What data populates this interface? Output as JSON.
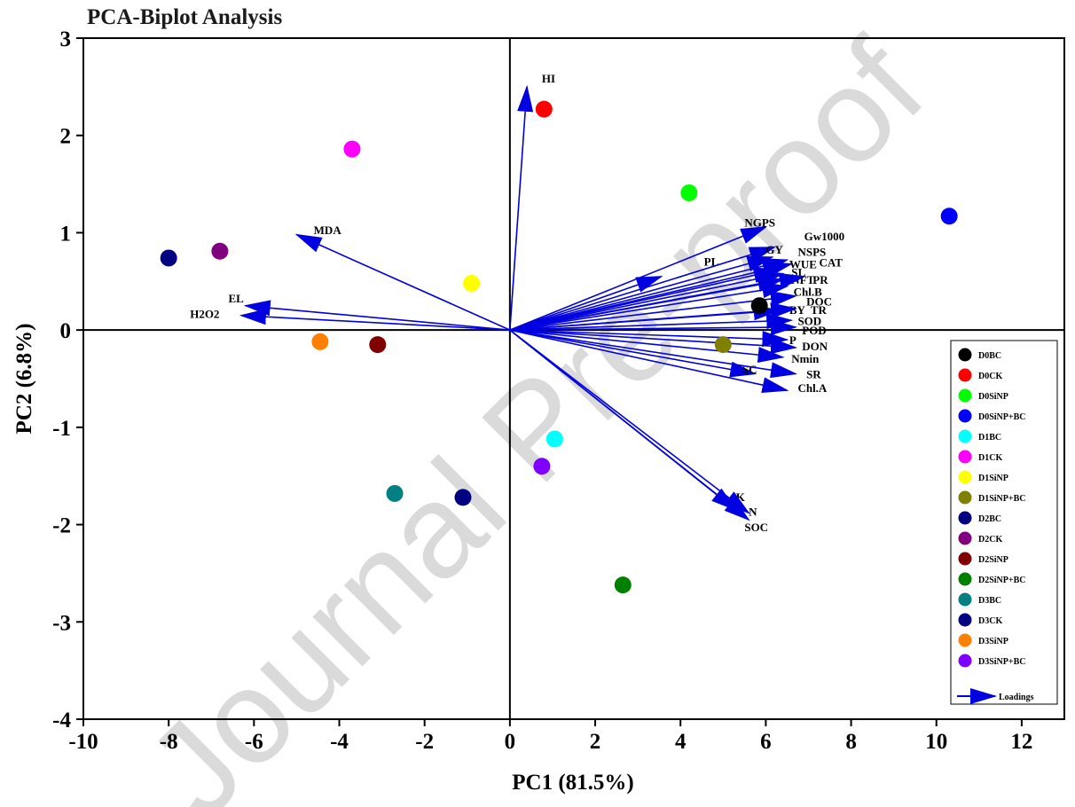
{
  "chart_data": {
    "type": "scatter",
    "title": "PCA-Biplot Analysis",
    "xlabel": "PC1 (81.5%)",
    "ylabel": "PC2 (6.8%)",
    "xlim": [
      -10,
      13
    ],
    "ylim": [
      -4,
      3
    ],
    "xticks": [
      "-10",
      "-8",
      "-6",
      "-4",
      "-2",
      "0",
      "2",
      "4",
      "6",
      "8",
      "10",
      "12"
    ],
    "yticks": [
      "-4",
      "-3",
      "-2",
      "-1",
      "0",
      "1",
      "2",
      "3"
    ],
    "grid": false,
    "legend_position": "right",
    "scores": [
      {
        "name": "D0BC",
        "x": 5.85,
        "y": 0.25,
        "color": "#000000"
      },
      {
        "name": "D0CK",
        "x": 0.8,
        "y": 2.27,
        "color": "#ff0000"
      },
      {
        "name": "D0SiNP",
        "x": 4.2,
        "y": 1.41,
        "color": "#00ff00"
      },
      {
        "name": "D0SiNP+BC",
        "x": 10.3,
        "y": 1.17,
        "color": "#0000ff"
      },
      {
        "name": "D1BC",
        "x": 1.05,
        "y": -1.12,
        "color": "#00ffff"
      },
      {
        "name": "D1CK",
        "x": -3.7,
        "y": 1.86,
        "color": "#ff00ff"
      },
      {
        "name": "D1SiNP",
        "x": -0.9,
        "y": 0.48,
        "color": "#ffff00"
      },
      {
        "name": "D1SiNP+BC",
        "x": 5.0,
        "y": -0.15,
        "color": "#808000"
      },
      {
        "name": "D2BC",
        "x": -8.0,
        "y": 0.74,
        "color": "#000080"
      },
      {
        "name": "D2CK",
        "x": -6.8,
        "y": 0.81,
        "color": "#800080"
      },
      {
        "name": "D2SiNP",
        "x": -3.1,
        "y": -0.15,
        "color": "#800000"
      },
      {
        "name": "D2SiNP+BC",
        "x": 2.65,
        "y": -2.62,
        "color": "#008000"
      },
      {
        "name": "D3BC",
        "x": -2.7,
        "y": -1.68,
        "color": "#008080"
      },
      {
        "name": "D3CK",
        "x": -1.1,
        "y": -1.72,
        "color": "#000080"
      },
      {
        "name": "D3SiNP",
        "x": -4.45,
        "y": -0.12,
        "color": "#ff8000"
      },
      {
        "name": "D3SiNP+BC",
        "x": 0.75,
        "y": -1.4,
        "color": "#8000ff"
      }
    ],
    "loadings_label": "Loadings",
    "loading_color": "#0000e0",
    "loadings": [
      {
        "name": "HI",
        "x": 0.4,
        "y": 2.5,
        "lx": 0.75,
        "ly": 2.58
      },
      {
        "name": "MDA",
        "x": -5.0,
        "y": 0.98,
        "lx": -4.6,
        "ly": 1.02
      },
      {
        "name": "EL",
        "x": -6.2,
        "y": 0.25,
        "lx": -6.6,
        "ly": 0.32
      },
      {
        "name": "H2O2",
        "x": -6.3,
        "y": 0.15,
        "lx": -7.5,
        "ly": 0.16
      },
      {
        "name": "PL",
        "x": 3.55,
        "y": 0.55,
        "lx": 4.55,
        "ly": 0.7
      },
      {
        "name": "NGPS",
        "x": 6.0,
        "y": 1.06,
        "lx": 5.5,
        "ly": 1.1
      },
      {
        "name": "Gw1000",
        "x": 6.2,
        "y": 0.85,
        "lx": 6.9,
        "ly": 0.96
      },
      {
        "name": "GY",
        "x": 6.15,
        "y": 0.75,
        "lx": 6.0,
        "ly": 0.82
      },
      {
        "name": "NSPS",
        "x": 6.5,
        "y": 0.72,
        "lx": 6.75,
        "ly": 0.8
      },
      {
        "name": "WUE",
        "x": 6.3,
        "y": 0.62,
        "lx": 6.55,
        "ly": 0.67
      },
      {
        "name": "CAT",
        "x": 6.6,
        "y": 0.68,
        "lx": 7.25,
        "ly": 0.69
      },
      {
        "name": "SL",
        "x": 6.4,
        "y": 0.58,
        "lx": 6.6,
        "ly": 0.59
      },
      {
        "name": "NFT",
        "x": 6.4,
        "y": 0.52,
        "lx": 6.6,
        "ly": 0.51
      },
      {
        "name": "PR",
        "x": 6.9,
        "y": 0.55,
        "lx": 7.1,
        "ly": 0.51
      },
      {
        "name": "Chl.B",
        "x": 6.5,
        "y": 0.45,
        "lx": 6.65,
        "ly": 0.39
      },
      {
        "name": "DOC",
        "x": 6.7,
        "y": 0.35,
        "lx": 6.95,
        "ly": 0.29
      },
      {
        "name": "BY",
        "x": 6.3,
        "y": 0.2,
        "lx": 6.55,
        "ly": 0.2
      },
      {
        "name": "TR",
        "x": 6.7,
        "y": 0.22,
        "lx": 7.05,
        "ly": 0.2
      },
      {
        "name": "SOD",
        "x": 6.6,
        "y": 0.1,
        "lx": 6.75,
        "ly": 0.09
      },
      {
        "name": "POD",
        "x": 6.7,
        "y": 0.03,
        "lx": 6.85,
        "ly": -0.01
      },
      {
        "name": "P",
        "x": 6.5,
        "y": -0.1,
        "lx": 6.55,
        "ly": -0.11
      },
      {
        "name": "DON",
        "x": 6.7,
        "y": -0.18,
        "lx": 6.85,
        "ly": -0.17
      },
      {
        "name": "Nmin",
        "x": 6.4,
        "y": -0.28,
        "lx": 6.6,
        "ly": -0.3
      },
      {
        "name": "SC",
        "x": 5.75,
        "y": -0.45,
        "lx": 5.45,
        "ly": -0.41
      },
      {
        "name": "SR",
        "x": 6.7,
        "y": -0.45,
        "lx": 6.95,
        "ly": -0.46
      },
      {
        "name": "Chl.A",
        "x": 6.5,
        "y": -0.62,
        "lx": 6.75,
        "ly": -0.6
      },
      {
        "name": "K",
        "x": 5.3,
        "y": -1.85,
        "lx": 5.3,
        "ly": -1.72
      },
      {
        "name": "N",
        "x": 5.6,
        "y": -1.88,
        "lx": 5.6,
        "ly": -1.87
      },
      {
        "name": "SOC",
        "x": 5.6,
        "y": -1.95,
        "lx": 5.5,
        "ly": -2.03
      }
    ]
  },
  "watermark": "Journal Pre-proof"
}
